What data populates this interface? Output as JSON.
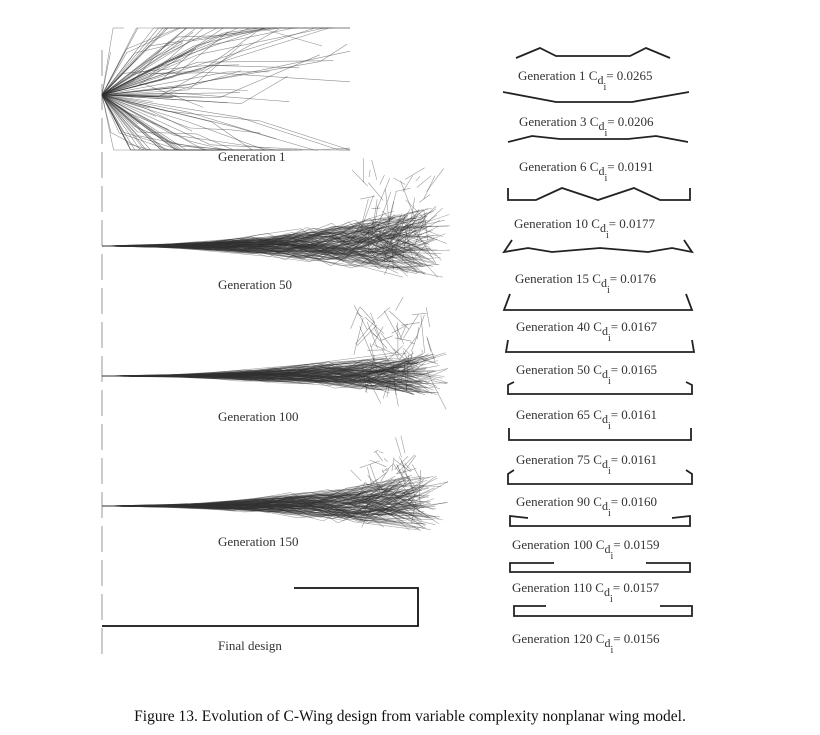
{
  "left_panel": {
    "stages": [
      {
        "label": "Generation  1"
      },
      {
        "label": "Generation  50"
      },
      {
        "label": "Generation  100"
      },
      {
        "label": "Generation  150"
      },
      {
        "label": "Final design"
      }
    ]
  },
  "right_panel": {
    "items": [
      {
        "generation": "Generation 1",
        "cd": "= 0.0265"
      },
      {
        "generation": "Generation 3",
        "cd": "= 0.0206"
      },
      {
        "generation": "Generation 6",
        "cd": "= 0.0191"
      },
      {
        "generation": "Generation 10",
        "cd": "= 0.0177"
      },
      {
        "generation": "Generation 15",
        "cd": "= 0.0176"
      },
      {
        "generation": "Generation 40",
        "cd": "= 0.0167"
      },
      {
        "generation": "Generation 50",
        "cd": "= 0.0165"
      },
      {
        "generation": "Generation 65",
        "cd": "= 0.0161"
      },
      {
        "generation": "Generation 75",
        "cd": "= 0.0161"
      },
      {
        "generation": "Generation 90",
        "cd": "= 0.0160"
      },
      {
        "generation": "Generation 100",
        "cd": "= 0.0159"
      },
      {
        "generation": "Generation 110",
        "cd": "= 0.0157"
      },
      {
        "generation": "Generation 120",
        "cd": "= 0.0156"
      }
    ],
    "cd_symbol": "C",
    "cd_sub": "d",
    "cd_subsub": "i"
  },
  "caption": "Figure 13.  Evolution of C-Wing design from variable complexity nonplanar wing model."
}
